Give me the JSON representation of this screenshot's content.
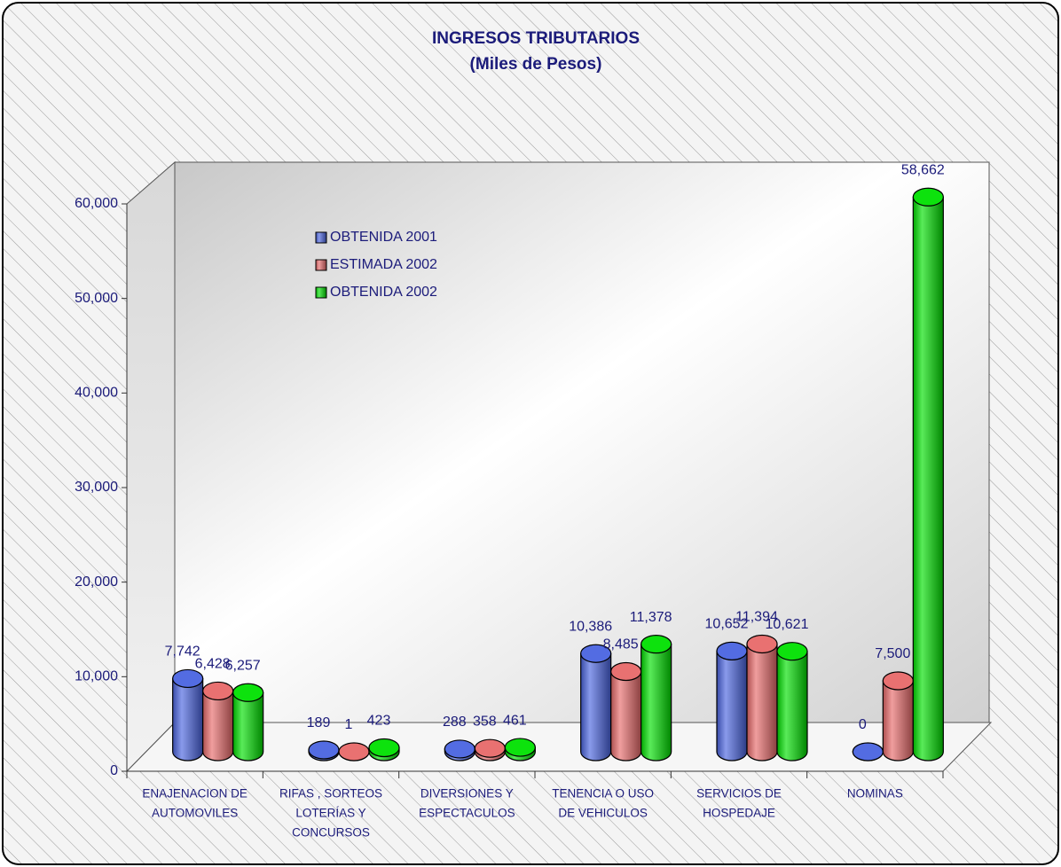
{
  "chart_data": {
    "type": "bar3d",
    "title": "INGRESOS TRIBUTARIOS",
    "subtitle": "(Miles de Pesos)",
    "categories": [
      [
        "ENAJENACION DE",
        "AUTOMOVILES"
      ],
      [
        "RIFAS , SORTEOS",
        "LOTERÍAS Y",
        "CONCURSOS"
      ],
      [
        "DIVERSIONES Y",
        "ESPECTACULOS"
      ],
      [
        "TENENCIA O USO",
        "DE VEHICULOS"
      ],
      [
        "SERVICIOS DE",
        "HOSPEDAJE"
      ],
      [
        "NOMINAS"
      ]
    ],
    "series": [
      {
        "name": "OBTENIDA 2001",
        "color": "#4a64e0",
        "values": [
          7742,
          189,
          288,
          10386,
          10652,
          0
        ],
        "value_labels": [
          "7,742",
          "189",
          "288",
          "10,386",
          "10,652",
          "0"
        ]
      },
      {
        "name": "ESTIMADA 2002",
        "color": "#e86a6a",
        "values": [
          6428,
          1,
          358,
          8485,
          11394,
          7500
        ],
        "value_labels": [
          "6,428",
          "1",
          "358",
          "8,485",
          "11,394",
          "7,500"
        ]
      },
      {
        "name": "OBTENIDA 2002",
        "color": "#00e000",
        "values": [
          6257,
          423,
          461,
          11378,
          10621,
          58662
        ],
        "value_labels": [
          "6,257",
          "423",
          "461",
          "11,378",
          "10,621",
          "58,662"
        ]
      }
    ],
    "ylim": [
      0,
      60000
    ],
    "yticks": [
      0,
      {
        "value": 10000,
        "label": "10,000"
      },
      {
        "value": 20000,
        "label": "20,000"
      },
      {
        "value": 30000,
        "label": "30,000"
      },
      {
        "value": 40000,
        "label": "40,000"
      },
      {
        "value": 50000,
        "label": "50,000"
      },
      {
        "value": 60000,
        "label": "60,000"
      }
    ],
    "legend": "top-left"
  }
}
